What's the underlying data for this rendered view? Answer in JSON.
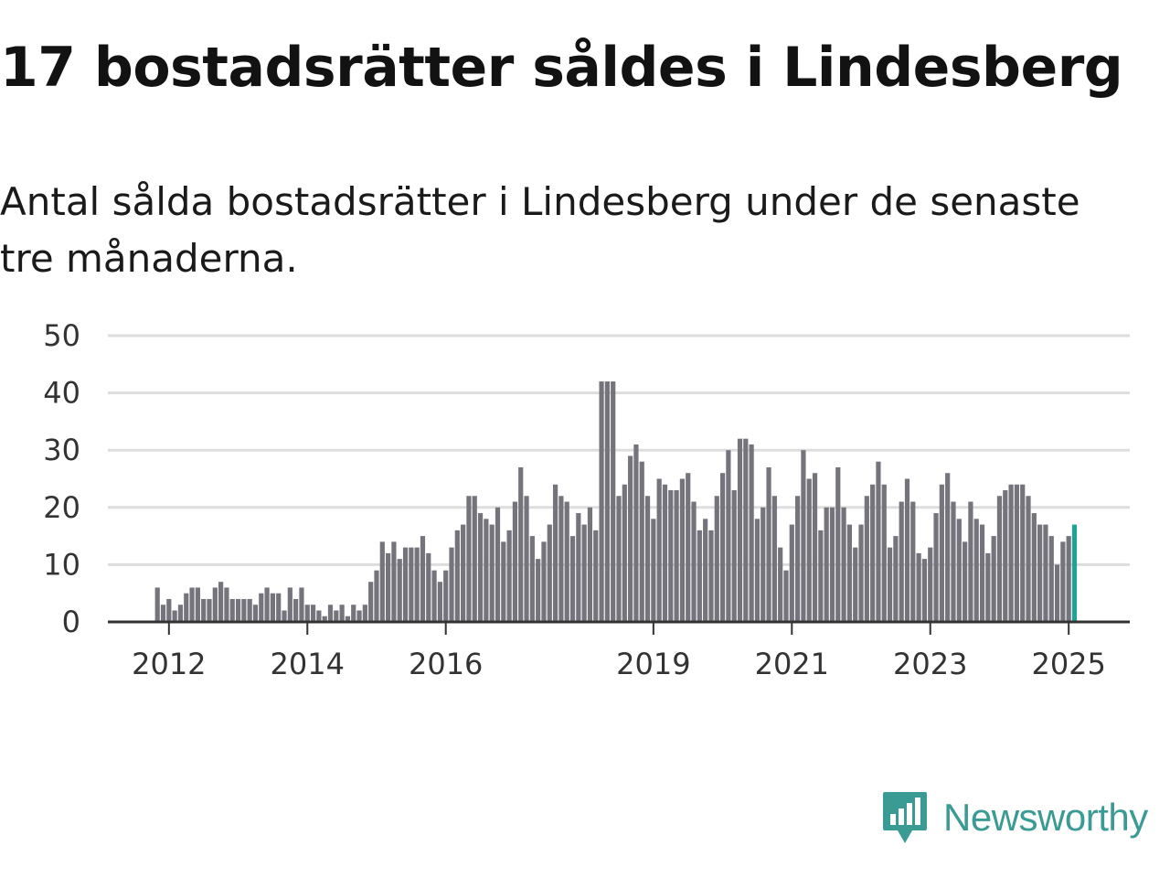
{
  "title": "17 bostadsrätter såldes i Lindesberg",
  "subtitle": "Antal sålda bostadsrätter i Lindesberg under de senaste tre månaderna.",
  "brand": {
    "name": "Newsworthy",
    "color": "#3a9a94"
  },
  "colors": {
    "bar": "#75737b",
    "highlight": "#20a397",
    "grid": "#dddddd",
    "axis": "#333333"
  },
  "chart_data": {
    "type": "bar",
    "title": "17 bostadsrätter såldes i Lindesberg",
    "xlabel": "",
    "ylabel": "",
    "ylim": [
      0,
      50
    ],
    "yticks": [
      0,
      10,
      20,
      30,
      40,
      50
    ],
    "xticks": [
      "2012",
      "2014",
      "2016",
      "2019",
      "2021",
      "2023",
      "2025"
    ],
    "grid": true,
    "start": "2011-11",
    "frequency": "monthly",
    "values": [
      6,
      3,
      4,
      2,
      3,
      5,
      6,
      6,
      4,
      4,
      6,
      7,
      6,
      4,
      4,
      4,
      4,
      3,
      5,
      6,
      5,
      5,
      2,
      6,
      4,
      6,
      3,
      3,
      2,
      1,
      3,
      2,
      3,
      1,
      3,
      2,
      3,
      7,
      9,
      14,
      12,
      14,
      11,
      13,
      13,
      13,
      15,
      12,
      9,
      7,
      9,
      13,
      16,
      17,
      22,
      22,
      19,
      18,
      17,
      20,
      14,
      16,
      21,
      27,
      22,
      15,
      11,
      14,
      17,
      24,
      22,
      21,
      15,
      19,
      17,
      20,
      16,
      42,
      42,
      42,
      22,
      24,
      29,
      31,
      28,
      22,
      18,
      25,
      24,
      23,
      23,
      25,
      26,
      21,
      16,
      18,
      16,
      22,
      26,
      30,
      23,
      32,
      32,
      31,
      18,
      20,
      27,
      22,
      13,
      9,
      17,
      22,
      30,
      25,
      26,
      16,
      20,
      20,
      27,
      20,
      17,
      13,
      17,
      22,
      24,
      28,
      24,
      13,
      15,
      21,
      25,
      21,
      12,
      11,
      13,
      19,
      24,
      26,
      21,
      18,
      14,
      21,
      18,
      17,
      12,
      15,
      22,
      23,
      24,
      24,
      24,
      22,
      19,
      17,
      17,
      15,
      10,
      14,
      15,
      17
    ],
    "annotations": [
      {
        "text": "17",
        "index": 161
      }
    ]
  }
}
